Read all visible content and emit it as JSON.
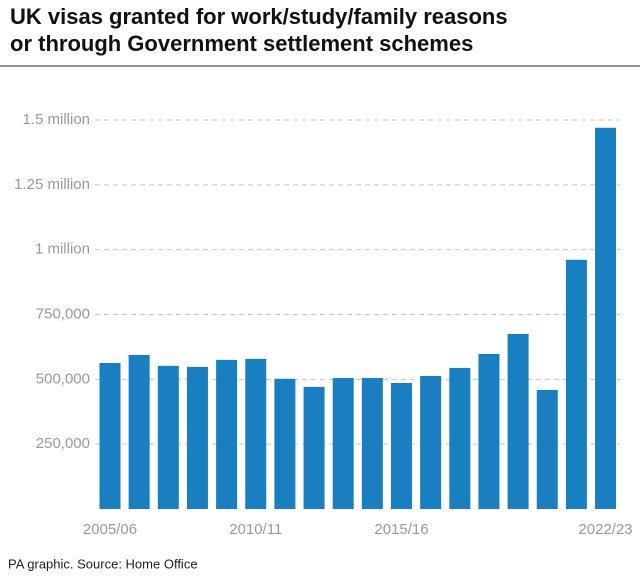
{
  "chart_data": {
    "type": "bar",
    "title": [
      "UK visas granted for work/study/family reasons",
      "or through Government settlement schemes"
    ],
    "source": "PA graphic. Source: Home Office",
    "categories": [
      "2005/06",
      null,
      null,
      null,
      null,
      "2010/11",
      null,
      null,
      null,
      null,
      "2015/16",
      null,
      null,
      null,
      null,
      null,
      null,
      "2022/23"
    ],
    "values": [
      563000,
      594000,
      552000,
      548000,
      575000,
      579000,
      502000,
      471000,
      505000,
      505000,
      486000,
      513000,
      544000,
      598000,
      675000,
      459000,
      961000,
      1470000
    ],
    "color": "#1a7fc1",
    "ylim": [
      0,
      1500000
    ],
    "yticks": [
      {
        "value": 250000,
        "label": "250,000"
      },
      {
        "value": 500000,
        "label": "500,000"
      },
      {
        "value": 750000,
        "label": "750,000"
      },
      {
        "value": 1000000,
        "label": "1 million"
      },
      {
        "value": 1250000,
        "label": "1.25 million"
      },
      {
        "value": 1500000,
        "label": "1.5 million"
      }
    ],
    "grid": true
  }
}
